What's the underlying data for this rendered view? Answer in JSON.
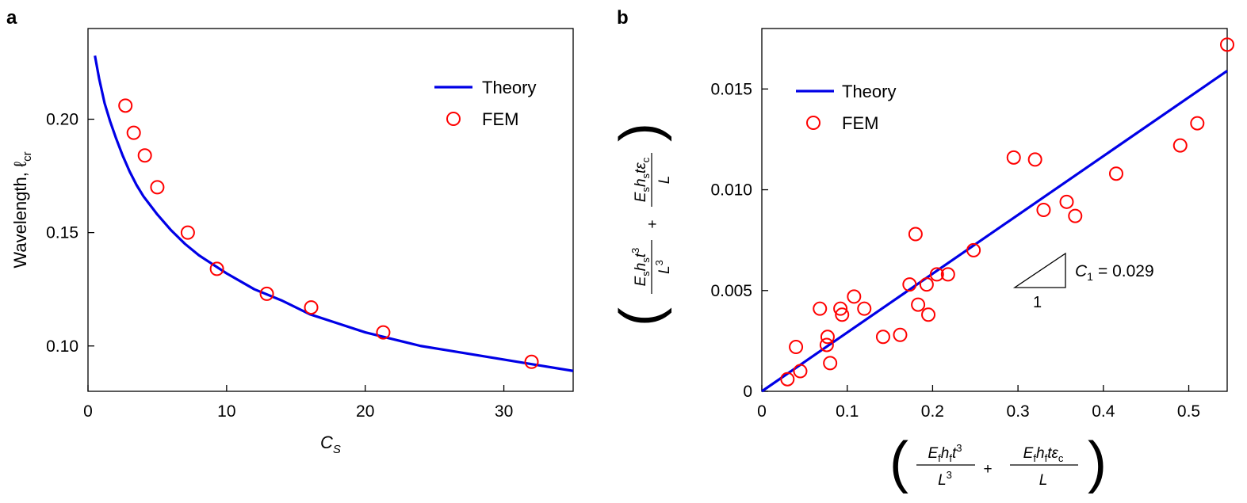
{
  "chart_data": [
    {
      "panel": "a",
      "type": "line",
      "xlabel": "C_S",
      "ylabel": "Wavelength, ℓcr",
      "xlim": [
        0,
        35
      ],
      "ylim": [
        0.08,
        0.24
      ],
      "x_ticks": [
        "0",
        "10",
        "20",
        "30"
      ],
      "y_ticks": [
        "0.10",
        "0.15",
        "0.20"
      ],
      "legend_placement": "top-right",
      "series": [
        {
          "name": "Theory",
          "style": "line",
          "color": "#0000e6",
          "x": [
            0.5,
            0.8,
            1.2,
            1.6,
            2.0,
            2.5,
            3.0,
            3.5,
            4.0,
            5.0,
            6.0,
            7.0,
            8.0,
            9.0,
            10.0,
            12.0,
            14.0,
            16.0,
            18.0,
            20.0,
            22.0,
            24.0,
            26.0,
            28.0,
            30.0,
            32.0,
            35.0
          ],
          "y": [
            0.228,
            0.218,
            0.207,
            0.199,
            0.192,
            0.184,
            0.177,
            0.171,
            0.166,
            0.158,
            0.151,
            0.145,
            0.14,
            0.136,
            0.132,
            0.125,
            0.12,
            0.114,
            0.11,
            0.106,
            0.103,
            0.1,
            0.098,
            0.096,
            0.094,
            0.092,
            0.089
          ]
        },
        {
          "name": "FEM",
          "style": "markers",
          "color": "#ff0000",
          "x": [
            2.7,
            3.3,
            4.1,
            5.0,
            7.2,
            9.3,
            12.9,
            16.1,
            21.3,
            32.0
          ],
          "y": [
            0.206,
            0.194,
            0.184,
            0.17,
            0.15,
            0.134,
            0.123,
            0.117,
            0.106,
            0.093
          ]
        }
      ]
    },
    {
      "panel": "b",
      "type": "scatter",
      "xlabel": "(E_f h_f t^3 / L^3 + E_f h_f t εc / L)",
      "ylabel": "(E_s h_s t^3 / L^3 + E_s h_s t εc / L)",
      "xlim": [
        0,
        0.545
      ],
      "ylim": [
        0,
        0.018
      ],
      "x_ticks": [
        "0",
        "0.1",
        "0.2",
        "0.3",
        "0.4",
        "0.5"
      ],
      "y_ticks": [
        "0",
        "0.005",
        "0.010",
        "0.015"
      ],
      "legend_placement": "top-left",
      "annotation": "C1 = 0.029",
      "slope_label": "1",
      "series": [
        {
          "name": "Theory",
          "style": "line",
          "color": "#0000e6",
          "x": [
            0,
            0.545
          ],
          "y": [
            0,
            0.0159
          ]
        },
        {
          "name": "FEM",
          "style": "markers",
          "color": "#ff0000",
          "x": [
            0.03,
            0.04,
            0.045,
            0.068,
            0.076,
            0.077,
            0.08,
            0.092,
            0.094,
            0.108,
            0.12,
            0.142,
            0.162,
            0.173,
            0.18,
            0.183,
            0.193,
            0.195,
            0.205,
            0.218,
            0.248,
            0.295,
            0.32,
            0.33,
            0.357,
            0.367,
            0.415,
            0.49,
            0.51,
            0.545
          ],
          "y": [
            0.0006,
            0.0022,
            0.001,
            0.0041,
            0.0023,
            0.0027,
            0.0014,
            0.0041,
            0.0038,
            0.0047,
            0.0041,
            0.0027,
            0.0028,
            0.0053,
            0.0078,
            0.0043,
            0.0053,
            0.0038,
            0.0058,
            0.0058,
            0.007,
            0.0116,
            0.0115,
            0.009,
            0.0094,
            0.0087,
            0.0108,
            0.0122,
            0.0133,
            0.0172
          ]
        }
      ]
    }
  ],
  "labels": {
    "panel_a": "a",
    "panel_b": "b",
    "legend_theory": "Theory",
    "legend_fem": "FEM",
    "ylabel_a": "Wavelength, ℓ",
    "ylabel_a_sub": "cr",
    "xlabel_a_main": "C",
    "xlabel_a_sub": "S",
    "c1_main": "C",
    "c1_sub": "1",
    "c1_value": "= 0.029",
    "slope_one": "1"
  },
  "colors": {
    "theory": "#0000e6",
    "fem": "#ff0000"
  }
}
